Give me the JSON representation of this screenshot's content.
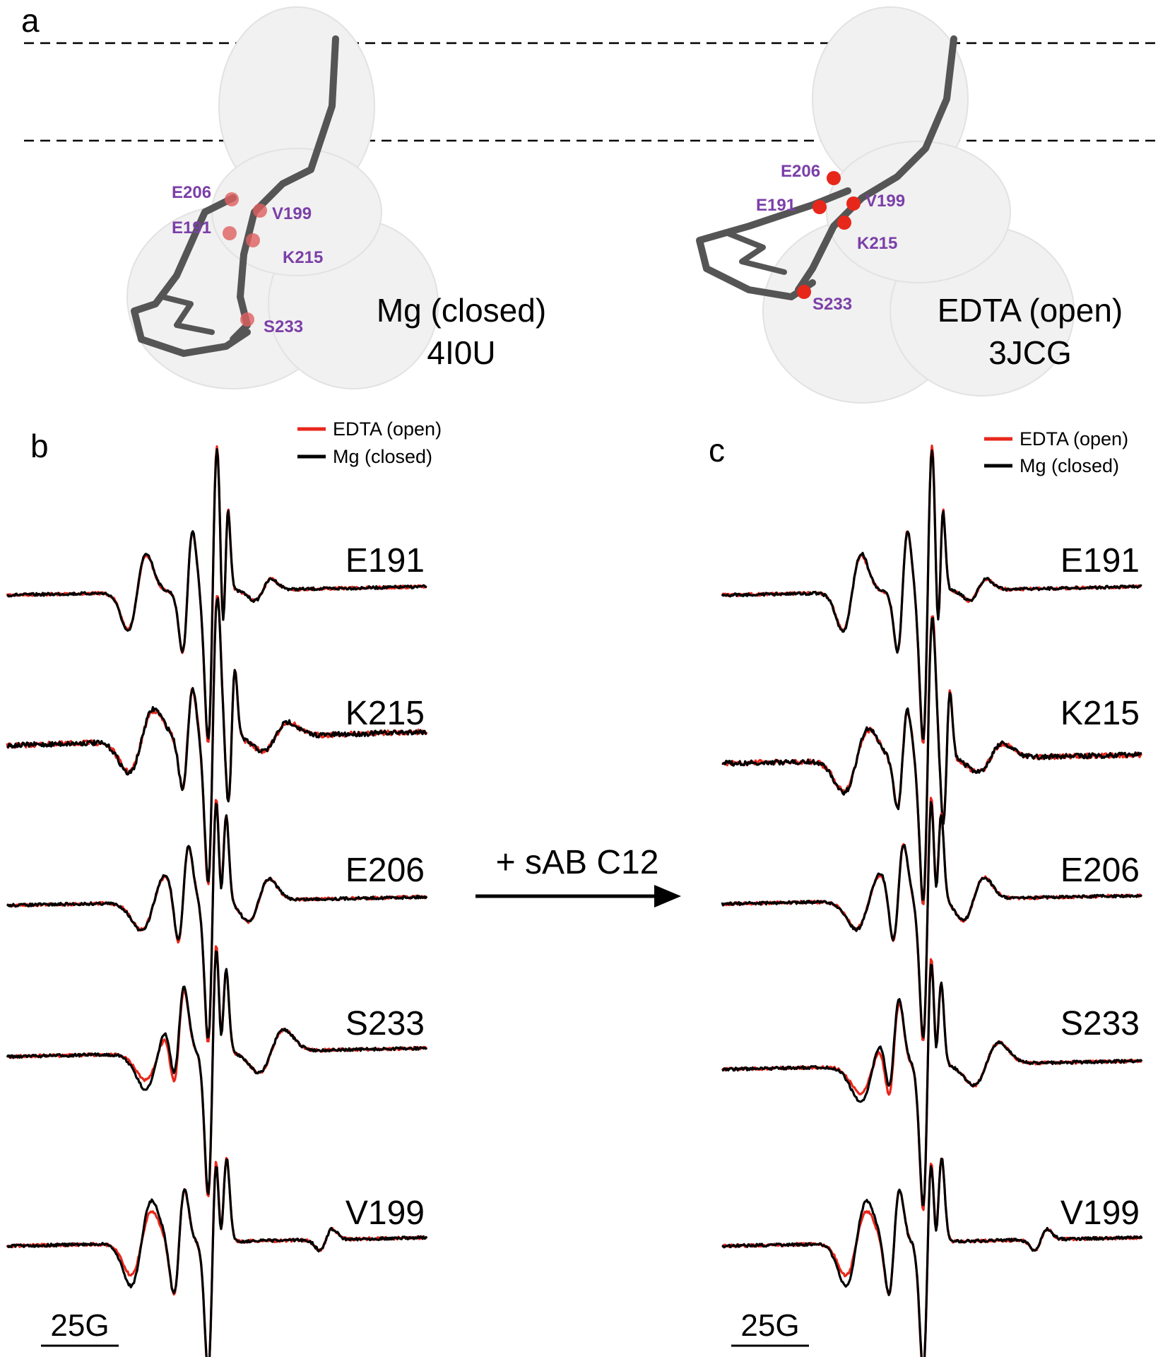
{
  "panel_a": {
    "label": "a",
    "structures": [
      {
        "state": "Mg (closed)",
        "pdb": "4I0U",
        "residues": [
          "E206",
          "V199",
          "E191",
          "K215",
          "S233"
        ]
      },
      {
        "state": "EDTA (open)",
        "pdb": "3JCG",
        "residues": [
          "E206",
          "E191",
          "V199",
          "K215",
          "S233"
        ]
      }
    ]
  },
  "panel_b": {
    "label": "b",
    "legend": [
      {
        "name": "EDTA (open)",
        "color": "#e8271b"
      },
      {
        "name": "Mg (closed)",
        "color": "#000000"
      }
    ],
    "spectra": [
      "E191",
      "K215",
      "E206",
      "S233",
      "V199"
    ],
    "scale_bar": "25G"
  },
  "arrow_label": "+ sAB C12",
  "panel_c": {
    "label": "c",
    "legend": [
      {
        "name": "EDTA (open)",
        "color": "#e8271b"
      },
      {
        "name": "Mg (closed)",
        "color": "#000000"
      }
    ],
    "spectra": [
      "E191",
      "K215",
      "E206",
      "S233",
      "V199"
    ],
    "scale_bar": "25G"
  }
}
